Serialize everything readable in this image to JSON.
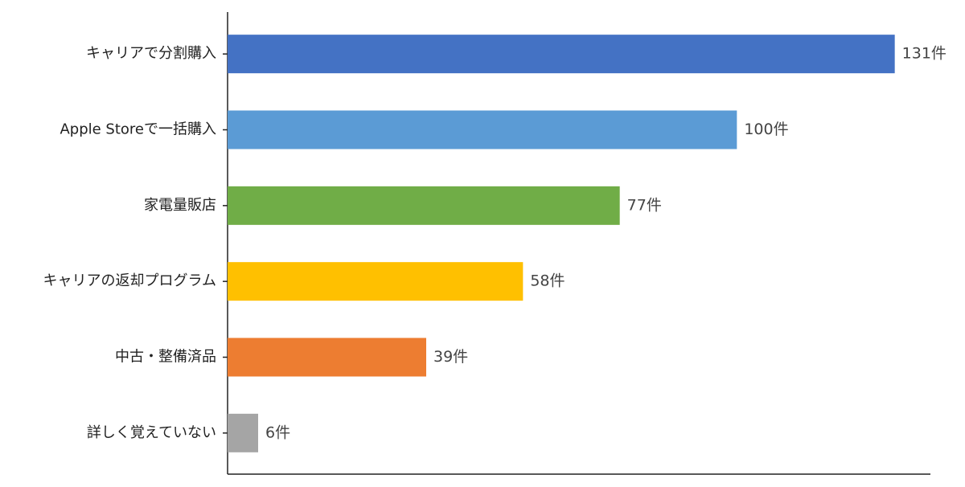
{
  "chart_data": {
    "type": "barh",
    "categories": [
      "キャリアで分割購入",
      "Apple Storeで一括購入",
      "家電量販店",
      "キャリアの返却プログラム",
      "中古・整備済品",
      "詳しく覚えていない"
    ],
    "values": [
      131,
      100,
      77,
      58,
      39,
      6
    ],
    "value_labels": [
      "131件",
      "100件",
      "77件",
      "58件",
      "39件",
      "6件"
    ],
    "colors": [
      "#4472c4",
      "#5b9bd5",
      "#70ad47",
      "#ffc000",
      "#ed7d31",
      "#a5a5a5"
    ],
    "xlim": [
      0,
      138
    ]
  }
}
